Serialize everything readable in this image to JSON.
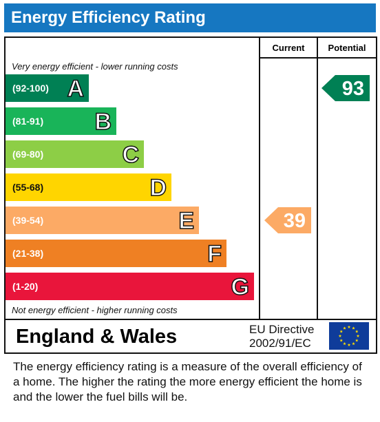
{
  "header": {
    "title": "Energy Efficiency Rating"
  },
  "columns": {
    "current": "Current",
    "potential": "Potential"
  },
  "hints": {
    "top": "Very energy efficient - lower running costs",
    "bottom": "Not energy efficient - higher running costs"
  },
  "footer": {
    "country": "England & Wales",
    "directive_line1": "EU Directive",
    "directive_line2": "2002/91/EC"
  },
  "description": "The energy efficiency rating is a measure of the overall efficiency of a home.  The higher the rating the more energy efficient the home is and the lower the fuel bills will be.",
  "chart_data": {
    "type": "bar",
    "title": "Energy Efficiency Rating",
    "bands": [
      {
        "letter": "A",
        "range": "(92-100)",
        "min": 92,
        "max": 100,
        "color": "#008054"
      },
      {
        "letter": "B",
        "range": "(81-91)",
        "min": 81,
        "max": 91,
        "color": "#19b459"
      },
      {
        "letter": "C",
        "range": "(69-80)",
        "min": 69,
        "max": 80,
        "color": "#8dce46"
      },
      {
        "letter": "D",
        "range": "(55-68)",
        "min": 55,
        "max": 68,
        "color": "#ffd500"
      },
      {
        "letter": "E",
        "range": "(39-54)",
        "min": 39,
        "max": 54,
        "color": "#fcaa65"
      },
      {
        "letter": "F",
        "range": "(21-38)",
        "min": 21,
        "max": 38,
        "color": "#ef8023"
      },
      {
        "letter": "G",
        "range": "(1-20)",
        "min": 1,
        "max": 20,
        "color": "#e9153b"
      }
    ],
    "current": {
      "value": 39,
      "band": "E",
      "color": "#fcaa65"
    },
    "potential": {
      "value": 93,
      "band": "A",
      "color": "#008054"
    }
  }
}
